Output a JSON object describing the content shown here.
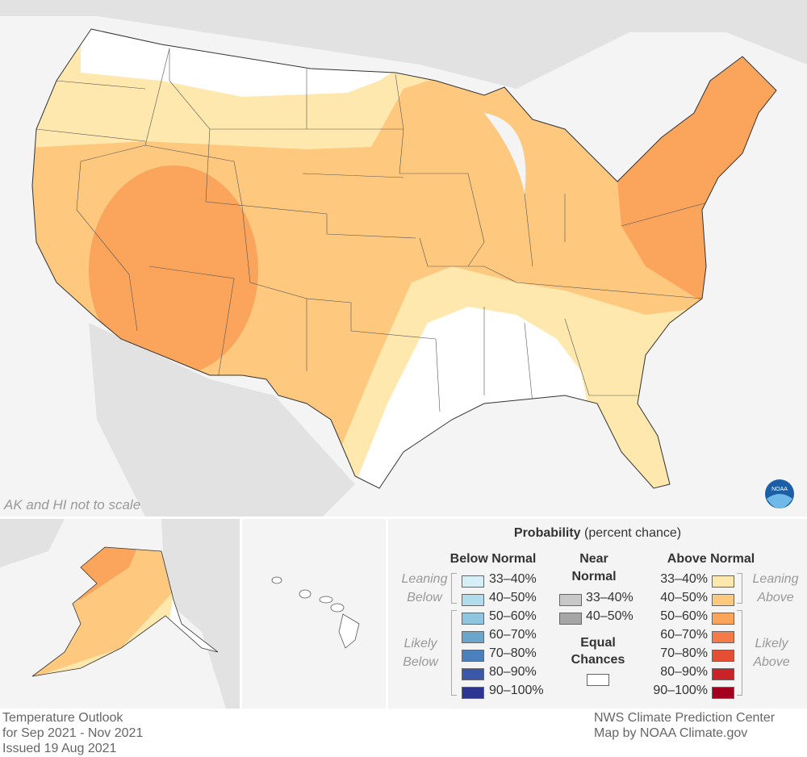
{
  "map": {
    "scale_note": "AK and HI not to scale",
    "logo": "NOAA"
  },
  "legend": {
    "title_bold": "Probability",
    "title_rest": " (percent chance)",
    "below": {
      "header": "Below Normal",
      "leaning": "Leaning Below",
      "likely": "Likely Below",
      "items": [
        {
          "label": "33–40%",
          "color": "#d6eef5"
        },
        {
          "label": "40–50%",
          "color": "#b1dcec"
        },
        {
          "label": "50–60%",
          "color": "#8fc5de"
        },
        {
          "label": "60–70%",
          "color": "#6aa6cc"
        },
        {
          "label": "70–80%",
          "color": "#4a80bc"
        },
        {
          "label": "80–90%",
          "color": "#3b58a8"
        },
        {
          "label": "90–100%",
          "color": "#2c3592"
        }
      ]
    },
    "near": {
      "header1": "Near",
      "header2": "Normal",
      "items": [
        {
          "label": "33–40%",
          "color": "#c8c8c8"
        },
        {
          "label": "40–50%",
          "color": "#a6a6a6"
        }
      ]
    },
    "equal": {
      "header1": "Equal",
      "header2": "Chances",
      "color": "#ffffff"
    },
    "above": {
      "header": "Above Normal",
      "leaning": "Leaning Above",
      "likely": "Likely Above",
      "items": [
        {
          "label": "33–40%",
          "color": "#fee8ad"
        },
        {
          "label": "40–50%",
          "color": "#fec97e"
        },
        {
          "label": "50–60%",
          "color": "#fba45c"
        },
        {
          "label": "60–70%",
          "color": "#f47a48"
        },
        {
          "label": "70–80%",
          "color": "#e44f33"
        },
        {
          "label": "80–90%",
          "color": "#c92227"
        },
        {
          "label": "90–100%",
          "color": "#a3001f"
        }
      ]
    }
  },
  "footer": {
    "line1": "Temperature Outlook",
    "line2": "for Sep 2021 - Nov 2021",
    "line3": "Issued 19 Aug 2021",
    "credit1": "NWS Climate Prediction Center",
    "credit2": "Map by NOAA Climate.gov"
  }
}
